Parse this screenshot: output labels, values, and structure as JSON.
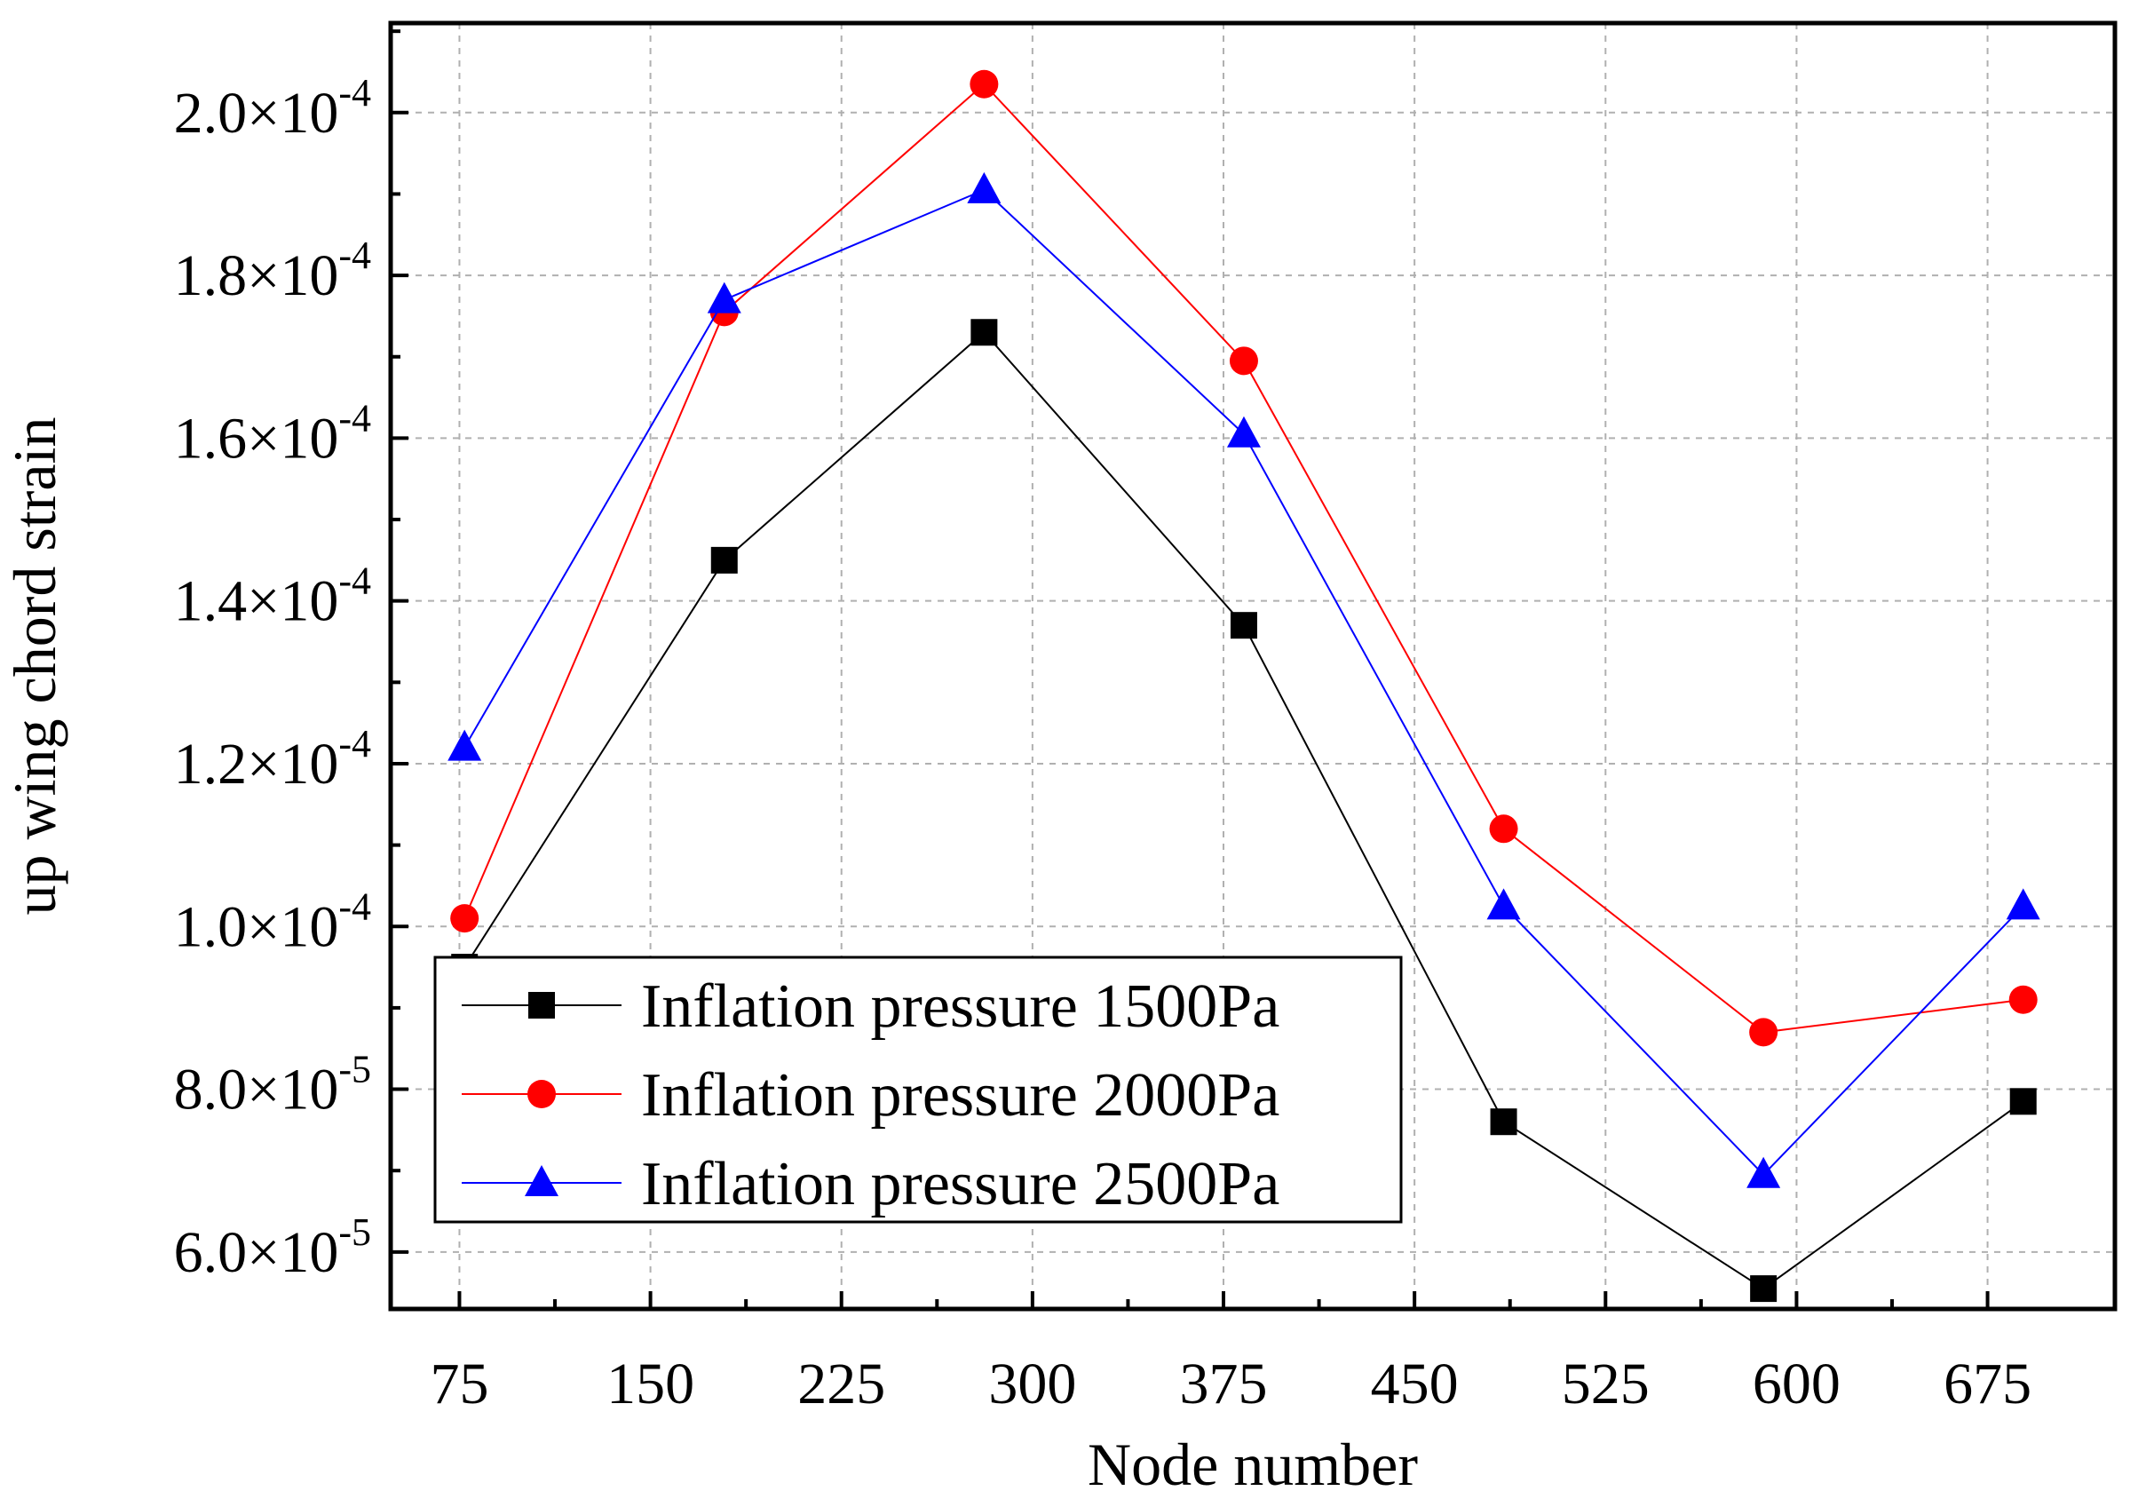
{
  "chart_data": {
    "type": "line",
    "xlabel": "Node number",
    "ylabel": "up wing chord strain",
    "xlim": [
      48,
      725
    ],
    "ylim": [
      5.3e-05,
      0.000211
    ],
    "x_ticks": [
      75,
      150,
      225,
      300,
      375,
      450,
      525,
      600,
      675
    ],
    "x_tick_labels": [
      "75",
      "150",
      "225",
      "300",
      "375",
      "450",
      "525",
      "600",
      "675"
    ],
    "y_ticks": [
      6e-05,
      8e-05,
      0.0001,
      0.00012,
      0.00014,
      0.00016,
      0.00018,
      0.0002
    ],
    "y_tick_labels": [
      {
        "mantissa": "6.0",
        "times": "×10",
        "exp": "-5"
      },
      {
        "mantissa": "8.0",
        "times": "×10",
        "exp": "-5"
      },
      {
        "mantissa": "1.0",
        "times": "×10",
        "exp": "-4"
      },
      {
        "mantissa": "1.2",
        "times": "×10",
        "exp": "-4"
      },
      {
        "mantissa": "1.4",
        "times": "×10",
        "exp": "-4"
      },
      {
        "mantissa": "1.6",
        "times": "×10",
        "exp": "-4"
      },
      {
        "mantissa": "1.8",
        "times": "×10",
        "exp": "-4"
      },
      {
        "mantissa": "2.0",
        "times": "×10",
        "exp": "-4"
      }
    ],
    "grid": true,
    "legend_position": "bottom-left",
    "x": [
      77,
      179,
      281,
      383,
      485,
      587,
      689
    ],
    "series": [
      {
        "name": "Inflation pressure 1500Pa",
        "color": "#000000",
        "marker": "square",
        "values": [
          9.5e-05,
          0.000145,
          0.000173,
          0.000137,
          7.6e-05,
          5.55e-05,
          7.85e-05
        ]
      },
      {
        "name": "Inflation pressure 2000Pa",
        "color": "#ff0000",
        "marker": "circle",
        "values": [
          0.000101,
          0.0001755,
          0.0002035,
          0.0001695,
          0.000112,
          8.7e-05,
          9.1e-05
        ]
      },
      {
        "name": "Inflation pressure 2500Pa",
        "color": "#0000ff",
        "marker": "triangle",
        "values": [
          0.000122,
          0.000177,
          0.0001905,
          0.0001605,
          0.0001025,
          6.95e-05,
          0.0001025
        ]
      }
    ]
  }
}
